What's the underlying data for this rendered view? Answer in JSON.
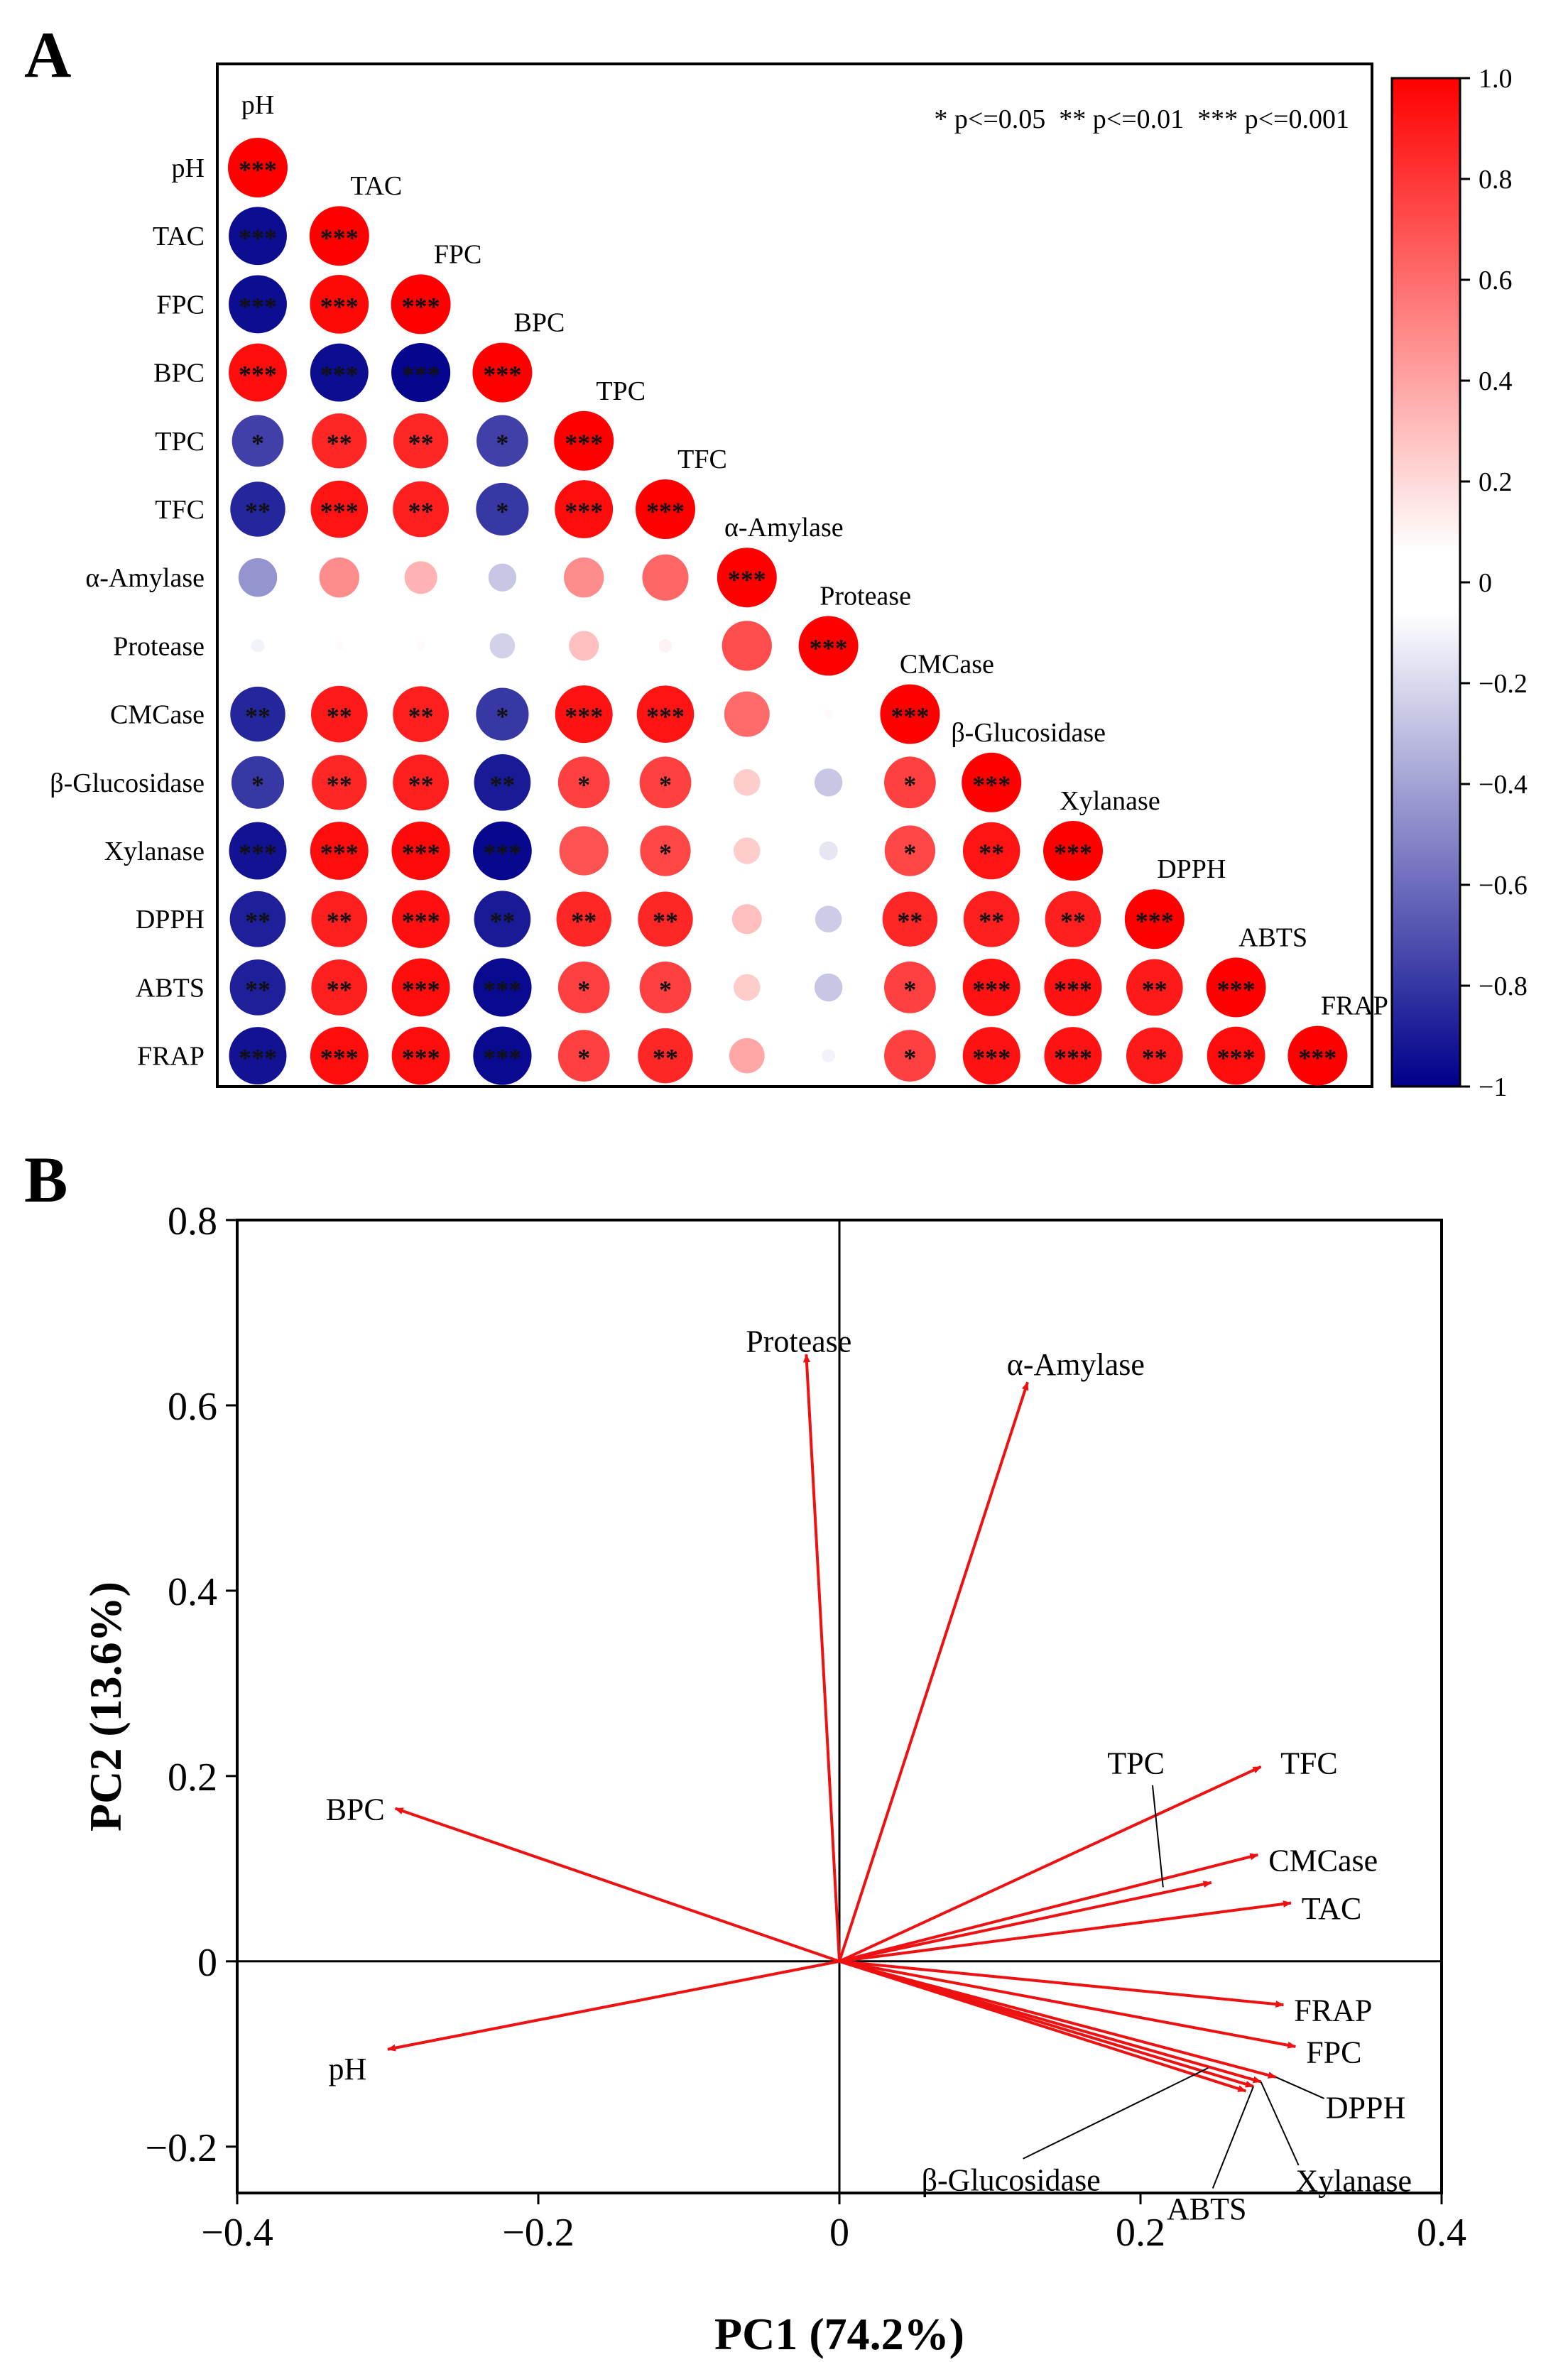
{
  "panels": {
    "a_label": "A",
    "b_label": "B"
  },
  "colors": {
    "positive": "#ff0000",
    "negative": "#00008b",
    "neutral": "#ffffff",
    "arrow": "#ee1111",
    "frame": "#000000"
  },
  "chart_data": [
    {
      "type": "heatmap",
      "subtype": "lower-triangular correlation matrix (circle glyphs)",
      "variables": [
        "pH",
        "TAC",
        "FPC",
        "BPC",
        "TPC",
        "TFC",
        "α-Amylase",
        "Protease",
        "CMCase",
        "β-Glucosidase",
        "Xylanase",
        "DPPH",
        "ABTS",
        "FRAP"
      ],
      "significance_legend": "* p<=0.05  ** p<=0.01  *** p<=0.001",
      "colorbar": {
        "range": [
          -1,
          1
        ],
        "tick_labels": [
          "1.0",
          "0.8",
          "0.6",
          "0.4",
          "0.2",
          "0",
          "−0.2",
          "−0.4",
          "−0.6",
          "−0.8",
          "−1"
        ]
      },
      "values": [
        [
          1
        ],
        [
          -0.95,
          1
        ],
        [
          -0.95,
          0.97,
          1
        ],
        [
          0.95,
          -0.95,
          -0.98,
          1
        ],
        [
          -0.75,
          0.85,
          0.85,
          -0.75,
          1
        ],
        [
          -0.85,
          0.92,
          0.88,
          -0.78,
          0.95,
          1
        ],
        [
          -0.42,
          0.45,
          0.3,
          -0.22,
          0.45,
          0.6,
          1
        ],
        [
          -0.05,
          0.02,
          0.02,
          -0.18,
          0.25,
          0.05,
          0.7,
          1
        ],
        [
          -0.85,
          0.9,
          0.88,
          -0.78,
          0.93,
          0.92,
          0.58,
          0.02,
          1
        ],
        [
          -0.78,
          0.85,
          0.88,
          -0.9,
          0.75,
          0.75,
          0.2,
          -0.22,
          0.75,
          1
        ],
        [
          -0.93,
          0.95,
          0.96,
          -0.97,
          0.68,
          0.72,
          0.2,
          -0.1,
          0.72,
          0.92,
          1
        ],
        [
          -0.88,
          0.88,
          0.94,
          -0.9,
          0.85,
          0.85,
          0.25,
          -0.2,
          0.85,
          0.88,
          0.88,
          1
        ],
        [
          -0.88,
          0.88,
          0.95,
          -0.96,
          0.75,
          0.75,
          0.2,
          -0.22,
          0.75,
          0.93,
          0.93,
          0.9,
          1
        ],
        [
          -0.93,
          0.95,
          0.95,
          -0.96,
          0.75,
          0.85,
          0.35,
          -0.05,
          0.75,
          0.93,
          0.93,
          0.9,
          0.95,
          1
        ]
      ],
      "stars": [
        [
          "***"
        ],
        [
          "***",
          "***"
        ],
        [
          "***",
          "***",
          "***"
        ],
        [
          "***",
          "***",
          "***",
          "***"
        ],
        [
          "*",
          "**",
          "**",
          "*",
          "***"
        ],
        [
          "**",
          "***",
          "**",
          "*",
          "***",
          "***"
        ],
        [
          "",
          "",
          "",
          "",
          "",
          "",
          "***"
        ],
        [
          "",
          "",
          "",
          "",
          "",
          "",
          "",
          "***"
        ],
        [
          "**",
          "**",
          "**",
          "*",
          "***",
          "***",
          "",
          "",
          "***"
        ],
        [
          "*",
          "**",
          "**",
          "**",
          "*",
          "*",
          "",
          "",
          "*",
          "***"
        ],
        [
          "***",
          "***",
          "***",
          "***",
          "",
          "*",
          "",
          "",
          "*",
          "**",
          "***"
        ],
        [
          "**",
          "**",
          "***",
          "**",
          "**",
          "**",
          "",
          "",
          "**",
          "**",
          "**",
          "***"
        ],
        [
          "**",
          "**",
          "***",
          "***",
          "*",
          "*",
          "",
          "",
          "*",
          "***",
          "***",
          "**",
          "***"
        ],
        [
          "***",
          "***",
          "***",
          "***",
          "*",
          "**",
          "",
          "",
          "*",
          "***",
          "***",
          "**",
          "***",
          "***"
        ]
      ]
    },
    {
      "type": "scatter",
      "subtype": "PCA biplot (loading vectors)",
      "xlabel": "PC1 (74.2%)",
      "ylabel": "PC2 (13.6%)",
      "xlim": [
        -0.4,
        0.4
      ],
      "ylim": [
        -0.25,
        0.8
      ],
      "xticks": [
        -0.4,
        -0.2,
        0,
        0.2,
        0.4
      ],
      "xtick_labels": [
        "−0.4",
        "−0.2",
        "0",
        "0.2",
        "0.4"
      ],
      "yticks": [
        -0.2,
        0,
        0.2,
        0.4,
        0.6,
        0.8
      ],
      "ytick_labels": [
        "−0.2",
        "0",
        "0.2",
        "0.4",
        "0.6",
        "0.8"
      ],
      "vectors": [
        {
          "name": "Protease",
          "x": -0.022,
          "y": 0.655
        },
        {
          "name": "α-Amylase",
          "x": 0.125,
          "y": 0.625
        },
        {
          "name": "BPC",
          "x": -0.295,
          "y": 0.165
        },
        {
          "name": "pH",
          "x": -0.3,
          "y": -0.095
        },
        {
          "name": "TFC",
          "x": 0.28,
          "y": 0.21
        },
        {
          "name": "TPC",
          "x": 0.247,
          "y": 0.085
        },
        {
          "name": "CMCase",
          "x": 0.278,
          "y": 0.115
        },
        {
          "name": "TAC",
          "x": 0.3,
          "y": 0.063
        },
        {
          "name": "FRAP",
          "x": 0.295,
          "y": -0.047
        },
        {
          "name": "FPC",
          "x": 0.303,
          "y": -0.092
        },
        {
          "name": "DPPH",
          "x": 0.29,
          "y": -0.125
        },
        {
          "name": "Xylanase",
          "x": 0.28,
          "y": -0.13
        },
        {
          "name": "ABTS",
          "x": 0.275,
          "y": -0.135
        },
        {
          "name": "β-Glucosidase",
          "x": 0.27,
          "y": -0.14
        }
      ]
    }
  ]
}
